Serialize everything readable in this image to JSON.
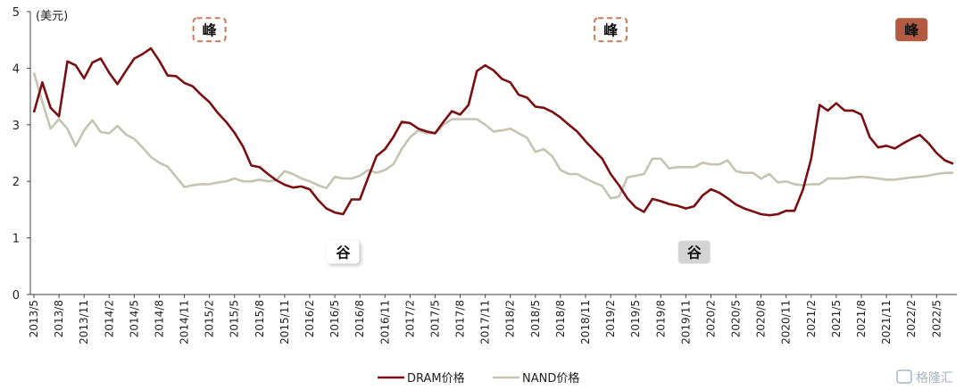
{
  "chart_data": {
    "type": "line",
    "unit_label": "(美元)",
    "ylim": [
      0,
      5
    ],
    "yticks": [
      "0",
      "1",
      "2",
      "3",
      "4",
      "5"
    ],
    "x_ticks": [
      "2013/5",
      "2013/8",
      "2013/11",
      "2014/2",
      "2014/5",
      "2014/8",
      "2014/11",
      "2015/2",
      "2015/5",
      "2015/8",
      "2015/11",
      "2016/2",
      "2016/5",
      "2016/8",
      "2016/11",
      "2017/2",
      "2017/5",
      "2017/8",
      "2017/11",
      "2018/2",
      "2018/5",
      "2018/8",
      "2018/11",
      "2019/2",
      "2019/5",
      "2019/8",
      "2019/11",
      "2020/2",
      "2020/5",
      "2020/8",
      "2020/11",
      "2021/2",
      "2021/5",
      "2021/8",
      "2021/11",
      "2022/2",
      "2022/5"
    ],
    "series": [
      {
        "name": "DRAM价格",
        "color": "#7a0f12",
        "values": [
          3.22,
          3.75,
          3.3,
          3.15,
          4.12,
          4.05,
          3.82,
          4.1,
          4.17,
          3.92,
          3.72,
          3.95,
          4.17,
          4.25,
          4.35,
          4.13,
          3.87,
          3.86,
          3.74,
          3.68,
          3.53,
          3.4,
          3.21,
          3.05,
          2.86,
          2.62,
          2.28,
          2.25,
          2.13,
          2.02,
          1.94,
          1.89,
          1.91,
          1.86,
          1.67,
          1.52,
          1.45,
          1.42,
          1.68,
          1.68,
          2.07,
          2.45,
          2.57,
          2.78,
          3.05,
          3.03,
          2.93,
          2.88,
          2.85,
          3.05,
          3.24,
          3.18,
          3.35,
          3.95,
          4.05,
          3.96,
          3.81,
          3.75,
          3.53,
          3.48,
          3.32,
          3.3,
          3.23,
          3.13,
          3.0,
          2.88,
          2.71,
          2.55,
          2.4,
          2.13,
          1.93,
          1.7,
          1.54,
          1.46,
          1.69,
          1.65,
          1.6,
          1.57,
          1.52,
          1.56,
          1.75,
          1.86,
          1.8,
          1.7,
          1.59,
          1.52,
          1.47,
          1.42,
          1.4,
          1.42,
          1.48,
          1.48,
          1.85,
          2.4,
          3.35,
          3.25,
          3.38,
          3.25,
          3.25,
          3.18,
          2.78,
          2.6,
          2.63,
          2.58,
          2.67,
          2.75,
          2.82,
          2.68,
          2.5,
          2.37,
          2.31
        ]
      },
      {
        "name": "NAND价格",
        "color": "#c5c4b3",
        "values": [
          3.92,
          3.4,
          2.93,
          3.1,
          2.93,
          2.62,
          2.9,
          3.08,
          2.87,
          2.85,
          2.98,
          2.83,
          2.75,
          2.6,
          2.43,
          2.33,
          2.26,
          2.08,
          1.9,
          1.93,
          1.95,
          1.95,
          1.98,
          2.0,
          2.05,
          2.0,
          2.0,
          2.03,
          2.0,
          2.02,
          2.18,
          2.13,
          2.05,
          2.0,
          1.93,
          1.88,
          2.08,
          2.05,
          2.05,
          2.1,
          2.2,
          2.15,
          2.2,
          2.3,
          2.57,
          2.78,
          2.9,
          2.85,
          2.85,
          3.0,
          3.1,
          3.1,
          3.1,
          3.1,
          3.0,
          2.88,
          2.9,
          2.93,
          2.85,
          2.77,
          2.52,
          2.57,
          2.45,
          2.2,
          2.13,
          2.13,
          2.05,
          1.98,
          1.92,
          1.7,
          1.73,
          2.07,
          2.1,
          2.13,
          2.4,
          2.4,
          2.23,
          2.25,
          2.25,
          2.25,
          2.33,
          2.3,
          2.3,
          2.37,
          2.18,
          2.15,
          2.15,
          2.05,
          2.13,
          1.98,
          2.0,
          1.95,
          1.93,
          1.95,
          1.95,
          2.05,
          2.05,
          2.05,
          2.07,
          2.08,
          2.07,
          2.05,
          2.03,
          2.03,
          2.05,
          2.07,
          2.08,
          2.1,
          2.13,
          2.15,
          2.15
        ]
      }
    ],
    "annotations": [
      {
        "text": "峰",
        "style": "dashed",
        "x_index": 21,
        "y": 4.68
      },
      {
        "text": "谷",
        "style": "shadow",
        "x_index": 37,
        "y": 0.75
      },
      {
        "text": "峰",
        "style": "dashed",
        "x_index": 69,
        "y": 4.68
      },
      {
        "text": "谷",
        "style": "gray",
        "x_index": 79,
        "y": 0.75
      },
      {
        "text": "峰",
        "style": "filled",
        "x_index": 105,
        "y": 4.68
      }
    ],
    "legend_position": "bottom-center",
    "grid": false
  },
  "watermark": "格隆汇"
}
